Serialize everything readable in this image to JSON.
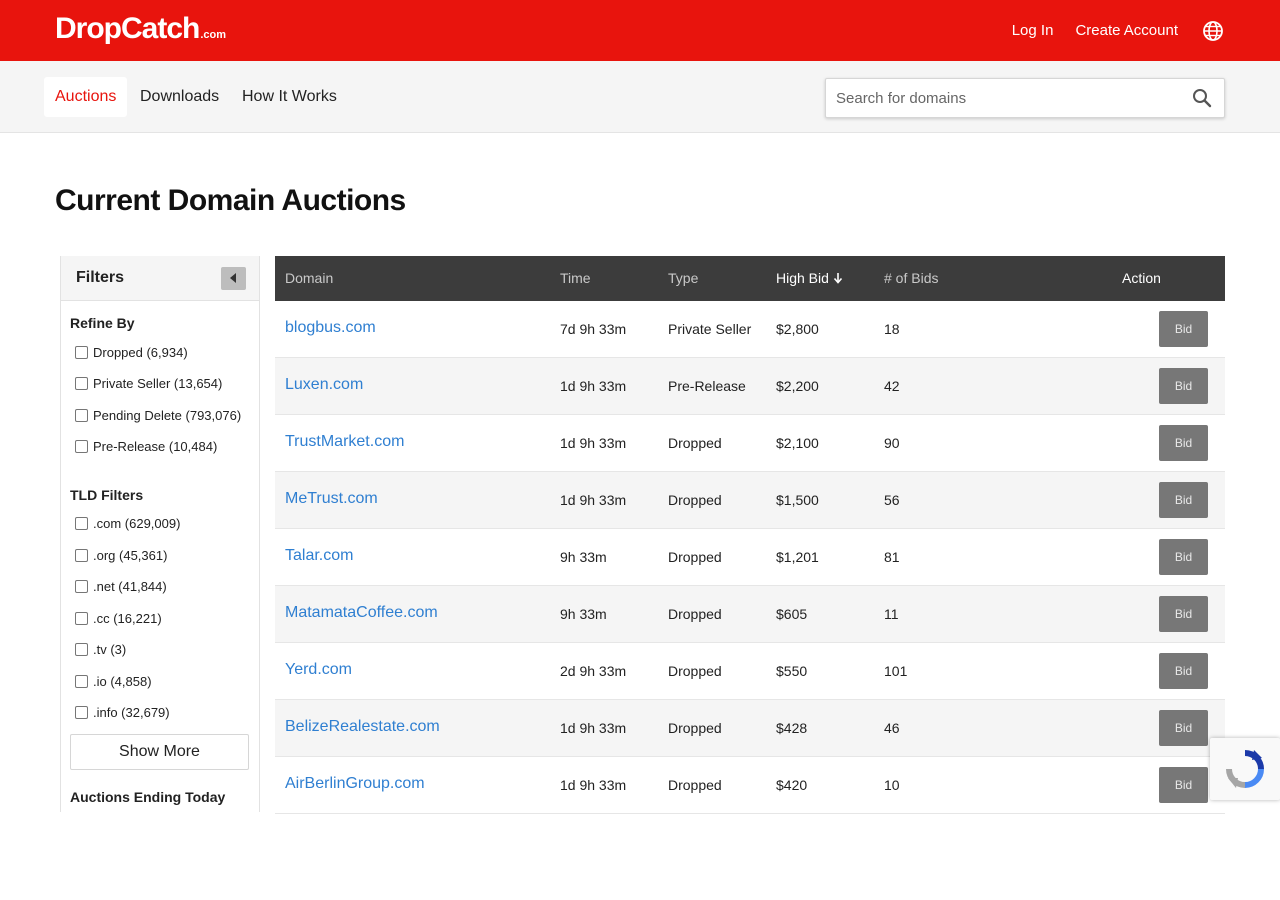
{
  "header": {
    "logo_text": "DropCatch",
    "logo_suffix": ".com",
    "login_label": "Log In",
    "create_account_label": "Create Account"
  },
  "nav": {
    "tabs": [
      {
        "label": "Auctions",
        "active": true
      },
      {
        "label": "Downloads",
        "active": false
      },
      {
        "label": "How It Works",
        "active": false
      }
    ],
    "search_placeholder": "Search for domains"
  },
  "page": {
    "title": "Current Domain Auctions"
  },
  "filters": {
    "title": "Filters",
    "refine_title": "Refine By",
    "refine_items": [
      {
        "label": "Dropped (6,934)"
      },
      {
        "label": "Private Seller (13,654)"
      },
      {
        "label": "Pending Delete (793,076)"
      },
      {
        "label": "Pre-Release (10,484)"
      }
    ],
    "tld_title": "TLD Filters",
    "tld_items": [
      {
        "label": ".com (629,009)"
      },
      {
        "label": ".org (45,361)"
      },
      {
        "label": ".net (41,844)"
      },
      {
        "label": ".cc (16,221)"
      },
      {
        "label": ".tv (3)"
      },
      {
        "label": ".io (4,858)"
      },
      {
        "label": ".info (32,679)"
      }
    ],
    "show_more_label": "Show More",
    "ending_title": "Auctions Ending Today"
  },
  "table": {
    "columns": {
      "domain": "Domain",
      "time": "Time",
      "type": "Type",
      "high_bid": "High Bid",
      "bids": "# of Bids",
      "action": "Action"
    },
    "bid_label": "Bid",
    "rows": [
      {
        "domain": "blogbus.com",
        "time": "7d 9h 33m",
        "type": "Private Seller",
        "high_bid": "$2,800",
        "bids": "18"
      },
      {
        "domain": "Luxen.com",
        "time": "1d 9h 33m",
        "type": "Pre-Release",
        "high_bid": "$2,200",
        "bids": "42"
      },
      {
        "domain": "TrustMarket.com",
        "time": "1d 9h 33m",
        "type": "Dropped",
        "high_bid": "$2,100",
        "bids": "90"
      },
      {
        "domain": "MeTrust.com",
        "time": "1d 9h 33m",
        "type": "Dropped",
        "high_bid": "$1,500",
        "bids": "56"
      },
      {
        "domain": "Talar.com",
        "time": "9h 33m",
        "type": "Dropped",
        "high_bid": "$1,201",
        "bids": "81"
      },
      {
        "domain": "MatamataCoffee.com",
        "time": "9h 33m",
        "type": "Dropped",
        "high_bid": "$605",
        "bids": "11"
      },
      {
        "domain": "Yerd.com",
        "time": "2d 9h 33m",
        "type": "Dropped",
        "high_bid": "$550",
        "bids": "101"
      },
      {
        "domain": "BelizeRealestate.com",
        "time": "1d 9h 33m",
        "type": "Dropped",
        "high_bid": "$428",
        "bids": "46"
      },
      {
        "domain": "AirBerlinGroup.com",
        "time": "1d 9h 33m",
        "type": "Dropped",
        "high_bid": "$420",
        "bids": "10"
      }
    ]
  },
  "colors": {
    "brand_red": "#e8140d",
    "link_blue": "#2f7fd1",
    "table_header": "#3c3c3c"
  },
  "icons": {
    "globe": "globe-icon",
    "search": "search-icon",
    "sort": "arrow-down-icon",
    "collapse": "caret-left-icon",
    "recaptcha": "recaptcha-icon"
  }
}
